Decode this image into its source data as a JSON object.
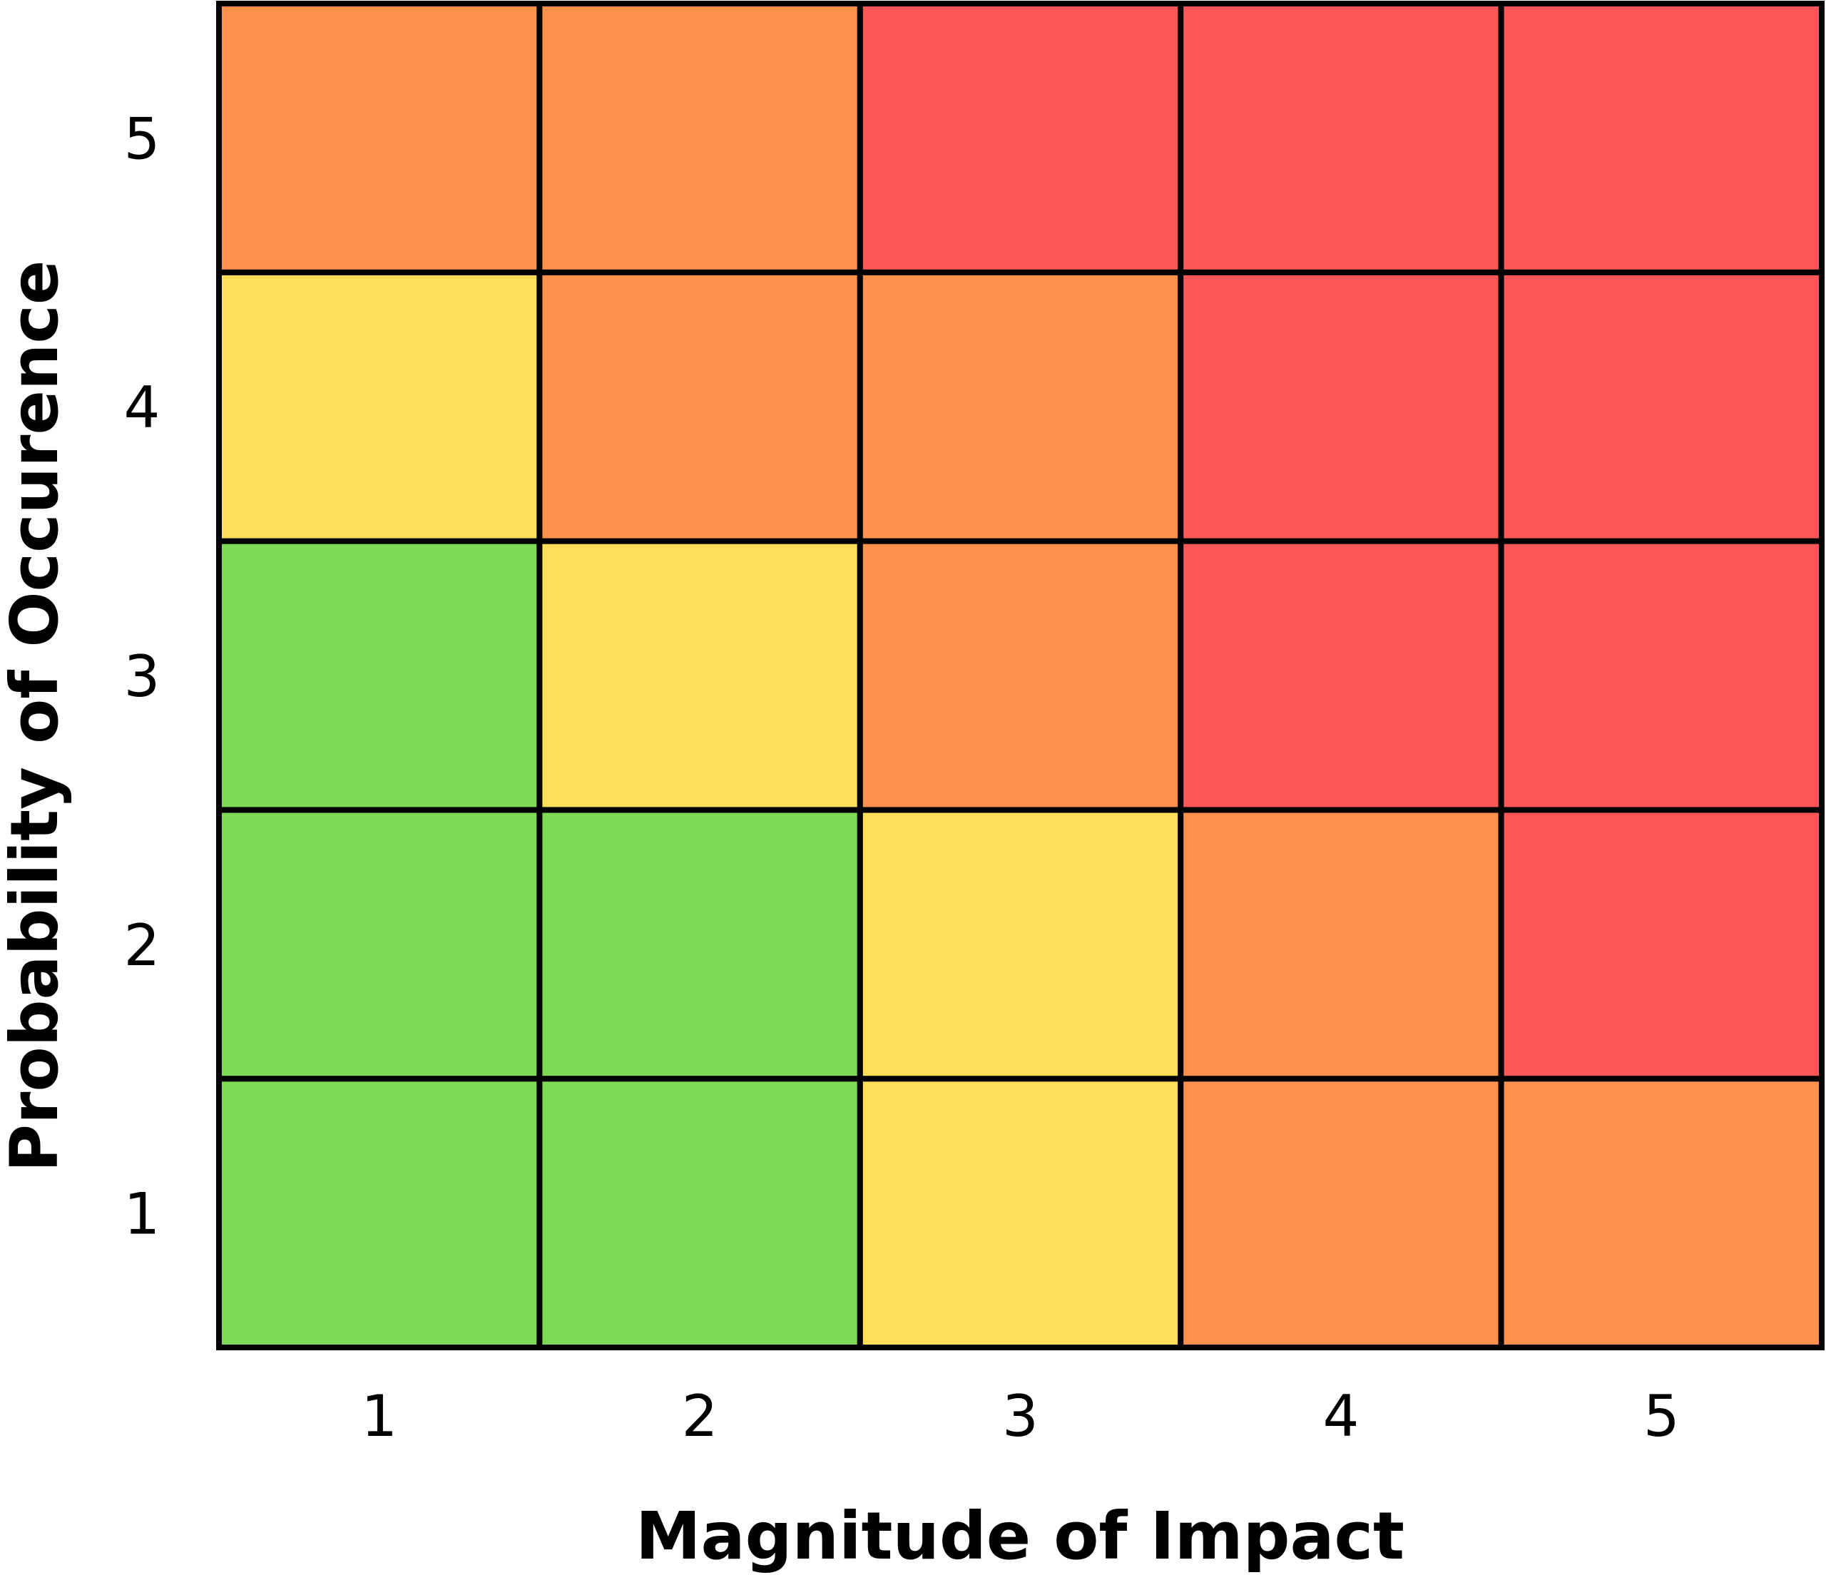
{
  "chart_data": {
    "type": "heatmap",
    "title": "",
    "xlabel": "Magnitude of Impact",
    "ylabel": "Probability of Occurence",
    "x_ticks": [
      "1",
      "2",
      "3",
      "4",
      "5"
    ],
    "y_ticks": [
      "1",
      "2",
      "3",
      "4",
      "5"
    ],
    "colors": {
      "low": "#7ED957",
      "medium": "#FFDE59",
      "high": "#FF914D",
      "critical": "#FF5757",
      "border": "#000000"
    },
    "rows_bottom_to_top": [
      [
        "low",
        "low",
        "medium",
        "high",
        "high"
      ],
      [
        "low",
        "low",
        "medium",
        "high",
        "critical"
      ],
      [
        "low",
        "medium",
        "high",
        "critical",
        "critical"
      ],
      [
        "medium",
        "high",
        "high",
        "critical",
        "critical"
      ],
      [
        "high",
        "high",
        "critical",
        "critical",
        "critical"
      ]
    ]
  }
}
